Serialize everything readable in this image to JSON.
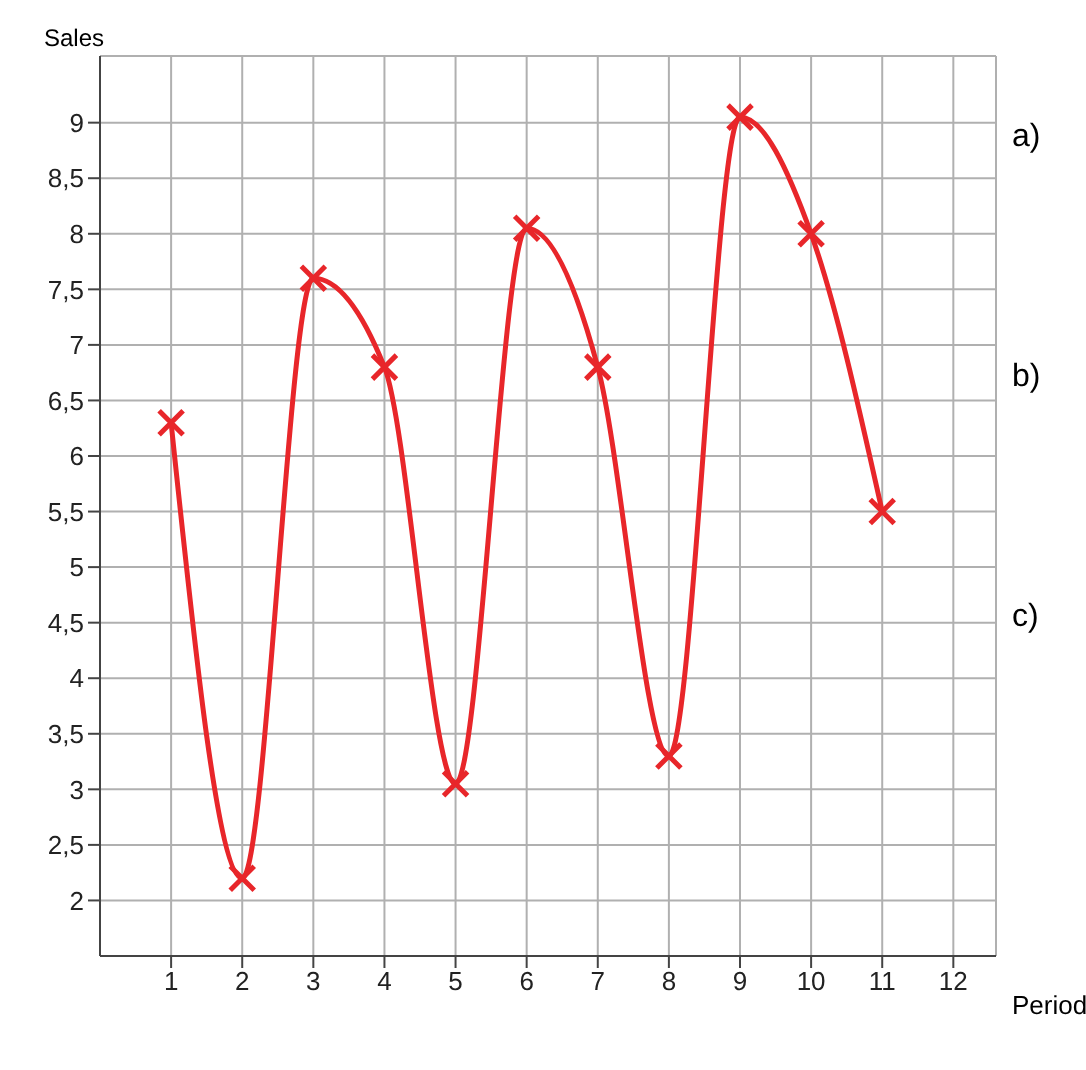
{
  "chart_data": {
    "type": "line",
    "xlabel": "Period",
    "ylabel": "Sales",
    "x": [
      1,
      2,
      3,
      4,
      5,
      6,
      7,
      8,
      9,
      10,
      11
    ],
    "series": [
      {
        "color": "#e8262a",
        "values": [
          6.3,
          2.2,
          7.6,
          6.8,
          3.05,
          8.05,
          6.8,
          3.3,
          9.05,
          8.0,
          5.5
        ]
      }
    ],
    "xlim": [
      0,
      12.6
    ],
    "xticks": [
      1,
      2,
      3,
      4,
      5,
      6,
      7,
      8,
      9,
      10,
      11,
      12
    ],
    "ylim": [
      1.5,
      9.6
    ],
    "yticks": [
      2,
      {
        "value": 2.5,
        "label": "2,5"
      },
      3,
      {
        "value": 3.5,
        "label": "3,5"
      },
      4,
      {
        "value": 4.5,
        "label": "4,5"
      },
      5,
      {
        "value": 5.5,
        "label": "5,5"
      },
      6,
      {
        "value": 6.5,
        "label": "6,5"
      },
      7,
      {
        "value": 7.5,
        "label": "7,5"
      },
      8,
      {
        "value": 8.5,
        "label": "8,5"
      },
      9
    ],
    "grid": true,
    "marker": "cross",
    "line_style": "solid",
    "legend": false,
    "annotations": [
      "a)",
      "b)",
      "c)"
    ]
  }
}
